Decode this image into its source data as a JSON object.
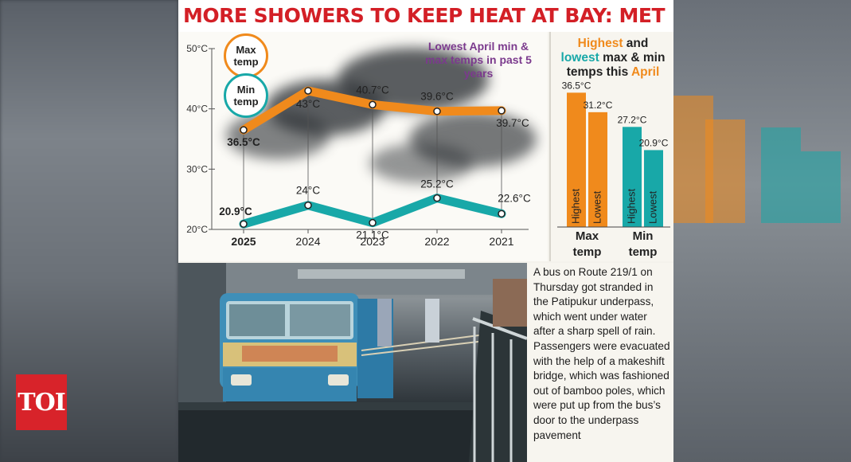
{
  "headline": "MORE SHOWERS TO KEEP HEAT AT BAY: MET",
  "logo": "TOI",
  "colors": {
    "max": "#f08a1c",
    "min": "#18a8a8",
    "headline": "#d31f26",
    "note": "#7b3a8d"
  },
  "legend": {
    "max_line1": "Max",
    "max_line2": "temp",
    "min_line1": "Min",
    "min_line2": "temp"
  },
  "note": "Lowest April min & max temps in past 5 years",
  "right_title": {
    "a": "Highest",
    "b": " and ",
    "c": "lowest",
    "d": " max & min temps this ",
    "e": "April"
  },
  "caption": "A bus on Route 219/1 on Thursday got stranded in the Patipukur underpass, which went under water after a sharp spell of rain. Passengers were evacuated with the help of a makeshift bridge, which was fashioned out of bamboo poles, which were put up from the bus’s door to the underpass pavement",
  "chart_data": [
    {
      "type": "line",
      "title": "Lowest April min & max temps in past 5 years",
      "categories": [
        "2025",
        "2024",
        "2023",
        "2022",
        "2021"
      ],
      "yticks": [
        "20°C",
        "30°C",
        "40°C",
        "50°C"
      ],
      "ylim": [
        20,
        50
      ],
      "series": [
        {
          "name": "Max temp",
          "values": [
            36.5,
            43,
            40.7,
            39.6,
            39.7
          ],
          "labels": [
            "36.5°C",
            "43°C",
            "40.7°C",
            "39.6°C",
            "39.7°C"
          ],
          "color": "#f08a1c"
        },
        {
          "name": "Min temp",
          "values": [
            20.9,
            24,
            21.1,
            25.2,
            22.6
          ],
          "labels": [
            "20.9°C",
            "24°C",
            "21.1°C",
            "25.2°C",
            "22.6°C"
          ],
          "color": "#18a8a8"
        }
      ]
    },
    {
      "type": "bar",
      "title": "Highest and lowest max & min temps this April",
      "groups": [
        {
          "name": "Max temp",
          "line1": "Max",
          "line2": "temp",
          "color": "#f08a1c",
          "bars": [
            {
              "label": "Highest",
              "value": 36.5,
              "text": "36.5°C"
            },
            {
              "label": "Lowest",
              "value": 31.2,
              "text": "31.2°C"
            }
          ]
        },
        {
          "name": "Min temp",
          "line1": "Min",
          "line2": "temp",
          "color": "#18a8a8",
          "bars": [
            {
              "label": "Highest",
              "value": 27.2,
              "text": "27.2°C"
            },
            {
              "label": "Lowest",
              "value": 20.9,
              "text": "20.9°C"
            }
          ]
        }
      ]
    }
  ]
}
